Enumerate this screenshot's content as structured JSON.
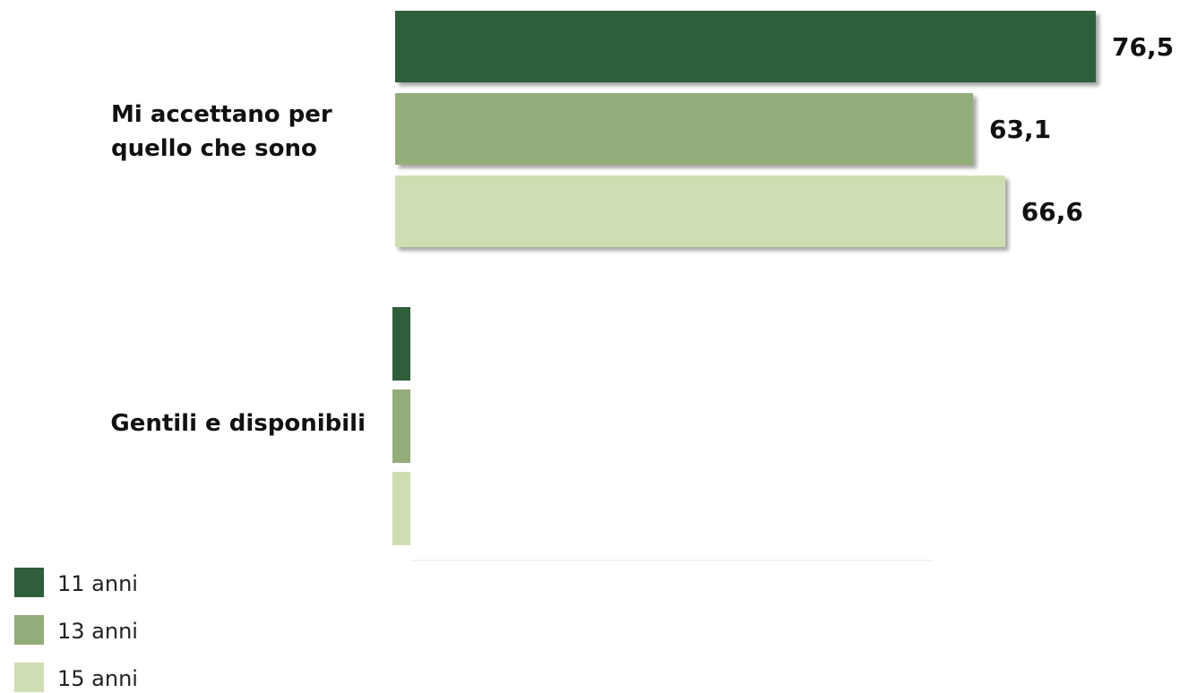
{
  "chart_data": {
    "type": "bar",
    "orientation": "horizontal",
    "title": "",
    "xlabel": "",
    "ylabel": "",
    "xlim": [
      0,
      80
    ],
    "grid": false,
    "legend_position": "bottom-left",
    "categories": [
      "Mi accettano per quello che sono",
      "Gentili e disponibili"
    ],
    "series": [
      {
        "name": "11 anni",
        "color": "#2e5e3a",
        "values": [
          76.5,
          null
        ],
        "labels": [
          "76,5",
          ""
        ]
      },
      {
        "name": "13 anni",
        "color": "#93ad7a",
        "values": [
          63.1,
          null
        ],
        "labels": [
          "63,1",
          ""
        ]
      },
      {
        "name": "15 anni",
        "color": "#cfdeb2",
        "values": [
          66.6,
          null
        ],
        "labels": [
          "66,6",
          ""
        ]
      }
    ]
  }
}
